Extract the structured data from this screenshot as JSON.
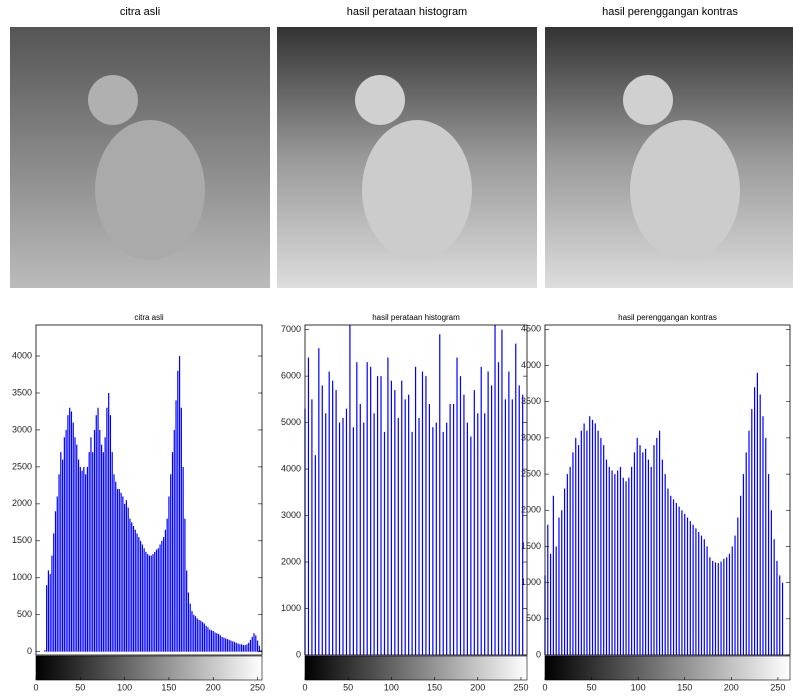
{
  "images": [
    {
      "title": "citra asli"
    },
    {
      "title": "hasil perataan histogram"
    },
    {
      "title": "hasil perenggangan kontras"
    }
  ],
  "chart_data": [
    {
      "type": "bar",
      "title": "citra asli",
      "color": "#0000ff",
      "xlim": [
        0,
        255
      ],
      "ylim": [
        -45,
        4420
      ],
      "xticks": [
        0,
        50,
        100,
        150,
        200,
        250
      ],
      "yticks": [
        0,
        500,
        1000,
        1500,
        2000,
        2500,
        3000,
        3500,
        4000
      ],
      "x": [
        0,
        2,
        4,
        6,
        8,
        10,
        12,
        14,
        16,
        18,
        20,
        22,
        24,
        26,
        28,
        30,
        32,
        34,
        36,
        38,
        40,
        42,
        44,
        46,
        48,
        50,
        52,
        54,
        56,
        58,
        60,
        62,
        64,
        66,
        68,
        70,
        72,
        74,
        76,
        78,
        80,
        82,
        84,
        86,
        88,
        90,
        92,
        94,
        96,
        98,
        100,
        102,
        104,
        106,
        108,
        110,
        112,
        114,
        116,
        118,
        120,
        122,
        124,
        126,
        128,
        130,
        132,
        134,
        136,
        138,
        140,
        142,
        144,
        146,
        148,
        150,
        152,
        154,
        156,
        158,
        160,
        162,
        164,
        166,
        168,
        170,
        172,
        174,
        176,
        178,
        180,
        182,
        184,
        186,
        188,
        190,
        192,
        194,
        196,
        198,
        200,
        202,
        204,
        206,
        208,
        210,
        212,
        214,
        216,
        218,
        220,
        222,
        224,
        226,
        228,
        230,
        232,
        234,
        236,
        238,
        240,
        242,
        244,
        246,
        248,
        250,
        252,
        254
      ],
      "values": [
        0,
        0,
        0,
        0,
        0,
        20,
        900,
        1100,
        1050,
        1300,
        1600,
        1900,
        2100,
        2400,
        2700,
        2600,
        2900,
        3000,
        3200,
        3300,
        3250,
        3100,
        2900,
        2800,
        2600,
        2500,
        2450,
        2500,
        2400,
        2500,
        2700,
        2900,
        2700,
        3000,
        3200,
        3300,
        3000,
        2800,
        2700,
        2900,
        3300,
        3500,
        3200,
        2700,
        2400,
        2300,
        2200,
        2200,
        2150,
        2100,
        2000,
        2050,
        1950,
        1800,
        1750,
        1700,
        1650,
        1600,
        1550,
        1500,
        1450,
        1400,
        1350,
        1320,
        1300,
        1300,
        1320,
        1350,
        1380,
        1400,
        1450,
        1500,
        1550,
        1650,
        1800,
        2100,
        2400,
        2700,
        3000,
        3400,
        3800,
        4000,
        3300,
        2500,
        1800,
        1100,
        800,
        650,
        550,
        500,
        480,
        450,
        430,
        420,
        400,
        380,
        350,
        330,
        300,
        290,
        280,
        260,
        250,
        240,
        220,
        200,
        190,
        180,
        170,
        160,
        150,
        140,
        130,
        120,
        110,
        100,
        100,
        90,
        90,
        100,
        120,
        160,
        200,
        250,
        220,
        150,
        80,
        20
      ]
    },
    {
      "type": "bar",
      "title": "hasil perataan histogram",
      "color": "#0000ff",
      "xlim": [
        0,
        257
      ],
      "ylim": [
        0,
        7100
      ],
      "xticks": [
        0,
        50,
        100,
        150,
        200,
        250
      ],
      "yticks": [
        0,
        1000,
        2000,
        3000,
        4000,
        5000,
        6000,
        7000
      ],
      "x": [
        0,
        4,
        8,
        12,
        16,
        20,
        24,
        28,
        32,
        36,
        40,
        44,
        48,
        52,
        56,
        60,
        64,
        68,
        72,
        76,
        80,
        84,
        88,
        92,
        96,
        100,
        104,
        108,
        112,
        116,
        120,
        124,
        128,
        132,
        136,
        140,
        144,
        148,
        152,
        156,
        160,
        164,
        168,
        172,
        176,
        180,
        184,
        188,
        192,
        196,
        200,
        204,
        208,
        212,
        216,
        220,
        224,
        228,
        232,
        236,
        240,
        244,
        248,
        252
      ],
      "values": [
        5300,
        6400,
        5500,
        4300,
        6600,
        5800,
        5200,
        6100,
        5900,
        5700,
        5000,
        5100,
        5300,
        7100,
        4900,
        6300,
        5400,
        5000,
        6300,
        6200,
        5200,
        6000,
        6000,
        4800,
        6400,
        5900,
        5700,
        5100,
        5900,
        5500,
        5600,
        4800,
        6200,
        5100,
        6100,
        6000,
        5400,
        4900,
        5000,
        6900,
        4800,
        5000,
        5400,
        5400,
        6400,
        6000,
        5600,
        5000,
        4700,
        5700,
        5200,
        6200,
        5200,
        6100,
        5800,
        7100,
        6300,
        7000,
        5500,
        6100,
        5500,
        6700,
        5800,
        5600
      ]
    },
    {
      "type": "bar",
      "title": "hasil perenggangan kontras",
      "color": "#0000ff",
      "xlim": [
        0,
        263
      ],
      "ylim": [
        0,
        4560
      ],
      "xticks": [
        0,
        50,
        100,
        150,
        200,
        250
      ],
      "yticks": [
        0,
        500,
        1000,
        1500,
        2000,
        2500,
        3000,
        3500,
        4000,
        4500
      ],
      "x": [
        0,
        3,
        6,
        9,
        12,
        15,
        18,
        21,
        24,
        27,
        30,
        33,
        36,
        39,
        42,
        45,
        48,
        51,
        54,
        57,
        60,
        63,
        66,
        69,
        72,
        75,
        78,
        81,
        84,
        87,
        90,
        93,
        96,
        99,
        102,
        105,
        108,
        111,
        114,
        117,
        120,
        123,
        126,
        129,
        132,
        135,
        138,
        141,
        144,
        147,
        150,
        153,
        156,
        159,
        162,
        165,
        168,
        171,
        174,
        177,
        180,
        183,
        186,
        189,
        192,
        195,
        198,
        201,
        204,
        207,
        210,
        213,
        216,
        219,
        222,
        225,
        228,
        231,
        234,
        237,
        240,
        243,
        246,
        249,
        252,
        255
      ],
      "values": [
        1100,
        1800,
        1400,
        2200,
        1500,
        1900,
        2000,
        2300,
        2500,
        2600,
        2800,
        3000,
        2900,
        3100,
        3200,
        3100,
        3300,
        3250,
        3200,
        3100,
        3000,
        2900,
        2700,
        2600,
        2550,
        2500,
        2550,
        2600,
        2450,
        2400,
        2450,
        2600,
        2800,
        3000,
        2900,
        2800,
        2850,
        2700,
        2600,
        2900,
        3000,
        3100,
        2700,
        2500,
        2300,
        2200,
        2150,
        2100,
        2050,
        2000,
        1950,
        1900,
        1850,
        1800,
        1750,
        1700,
        1650,
        1600,
        1500,
        1350,
        1300,
        1280,
        1270,
        1290,
        1330,
        1350,
        1400,
        1500,
        1650,
        1900,
        2200,
        2500,
        2800,
        3100,
        3400,
        3700,
        3900,
        3600,
        3300,
        3000,
        2500,
        2000,
        1600,
        1300,
        1100,
        1000
      ]
    }
  ]
}
